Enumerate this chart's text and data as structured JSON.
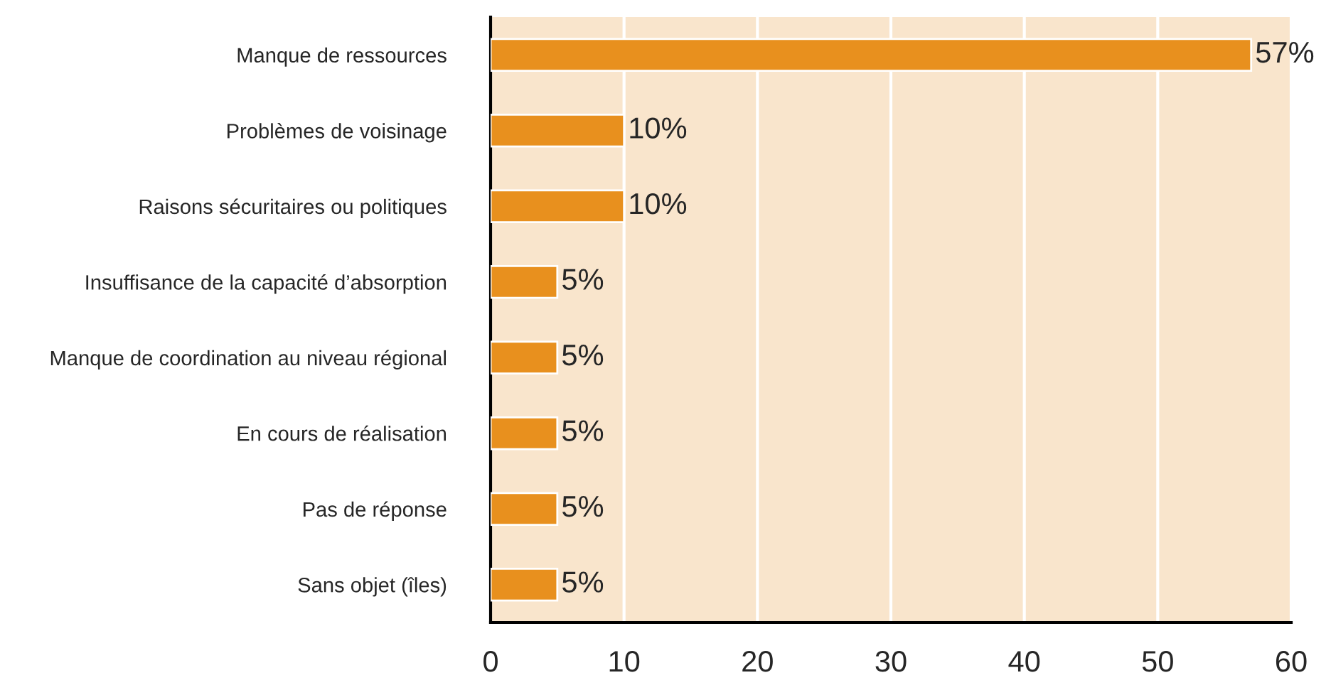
{
  "chart_data": {
    "type": "bar",
    "orientation": "horizontal",
    "categories": [
      "Manque de ressources",
      "Problèmes de voisinage",
      "Raisons sécuritaires ou politiques",
      "Insuffisance de la capacité d’absorption",
      "Manque de coordination au niveau régional",
      "En cours de réalisation",
      "Pas de réponse",
      "Sans objet (îles)"
    ],
    "values": [
      57,
      10,
      10,
      5,
      5,
      5,
      5,
      5
    ],
    "value_labels": [
      "57%",
      "10%",
      "10%",
      "5%",
      "5%",
      "5%",
      "5%",
      "5%"
    ],
    "color": "#e8901e",
    "xlim": [
      0,
      60
    ],
    "xticks": [
      0,
      10,
      20,
      30,
      40,
      50,
      60
    ],
    "grid": "x"
  }
}
